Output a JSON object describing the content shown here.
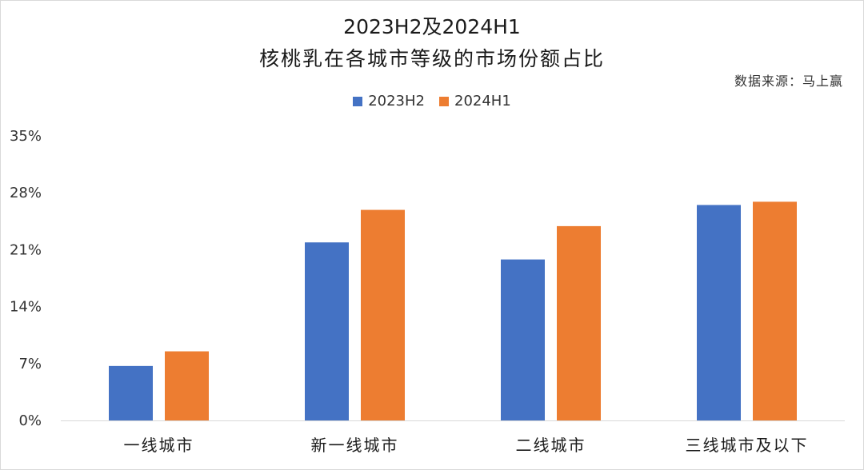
{
  "title": {
    "line1": "2023H2及2024H1",
    "line2": "核桃乳在各城市等级的市场份额占比"
  },
  "source": "数据来源：马上赢",
  "colors": {
    "2023H2": "#4472c4",
    "2024H1": "#ed7d31",
    "grid": "#d9d9d9",
    "axis_text": "#333333"
  },
  "legend": [
    {
      "name": "2023H2",
      "color": "#4472c4"
    },
    {
      "name": "2024H1",
      "color": "#ed7d31"
    }
  ],
  "chart_data": {
    "type": "bar",
    "title": "2023H2及2024H1 核桃乳在各城市等级的市场份额占比",
    "categories": [
      "一线城市",
      "新一线城市",
      "二线城市",
      "三线城市及以下"
    ],
    "series": [
      {
        "name": "2023H2",
        "values": [
          6.7,
          21.9,
          19.8,
          26.5
        ]
      },
      {
        "name": "2024H1",
        "values": [
          8.5,
          25.9,
          23.9,
          26.9
        ]
      }
    ],
    "ylim": [
      0,
      35
    ],
    "yticks": [
      "0%",
      "7%",
      "14%",
      "21%",
      "28%",
      "35%"
    ],
    "ytick_values": [
      0,
      7,
      14,
      21,
      28,
      35
    ],
    "grid": false,
    "legend_position": "top-center"
  }
}
